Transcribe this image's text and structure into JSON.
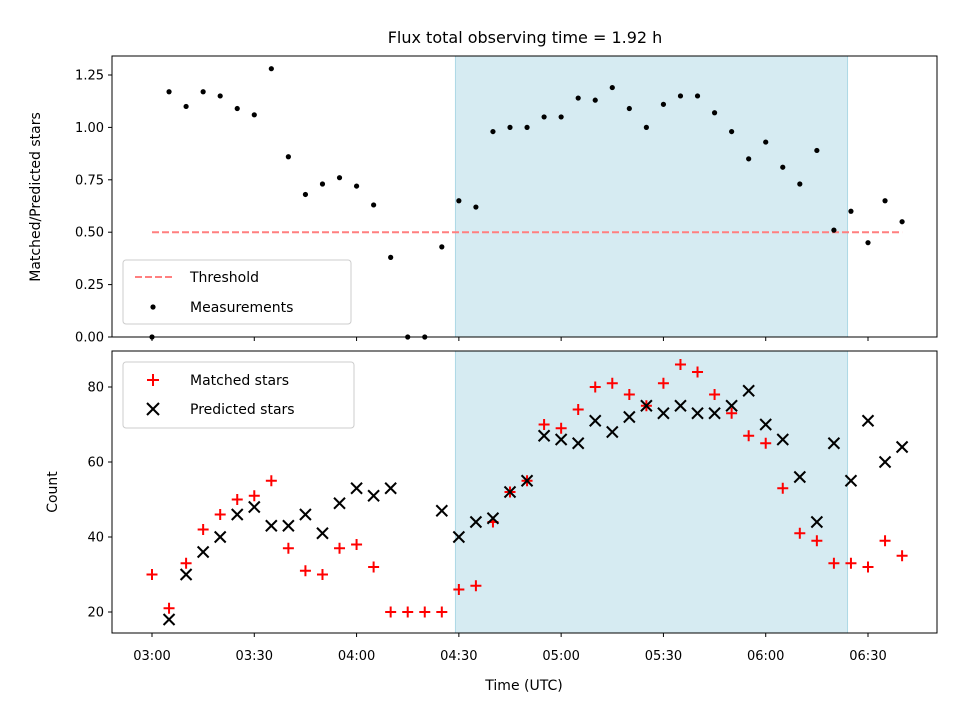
{
  "chart_data": [
    {
      "type": "scatter",
      "title": "Flux total observing time = 1.92 h",
      "xlabel": "",
      "ylabel": "Matched/Predicted stars",
      "ylim": [
        0,
        1.35
      ],
      "yticks": [
        "0.00",
        "0.25",
        "0.50",
        "0.75",
        "1.00",
        "1.25"
      ],
      "shaded_region": {
        "x_start": "04:29",
        "x_end": "06:24",
        "color": "#add8e6"
      },
      "threshold": {
        "name": "Threshold",
        "value": 0.5,
        "x_start": "03:00",
        "x_end": "06:40",
        "color": "#ff7f7f"
      },
      "legend": {
        "position": "lower-left",
        "entries": [
          "Threshold",
          "Measurements"
        ]
      },
      "series": [
        {
          "name": "Measurements",
          "color": "#000000",
          "x": [
            "03:00",
            "03:05",
            "03:10",
            "03:15",
            "03:20",
            "03:25",
            "03:30",
            "03:35",
            "03:40",
            "03:45",
            "03:50",
            "03:55",
            "04:00",
            "04:05",
            "04:10",
            "04:15",
            "04:20",
            "04:25",
            "04:30",
            "04:35",
            "04:40",
            "04:45",
            "04:50",
            "04:55",
            "05:00",
            "05:05",
            "05:10",
            "05:15",
            "05:20",
            "05:25",
            "05:30",
            "05:35",
            "05:40",
            "05:45",
            "05:50",
            "05:55",
            "06:00",
            "06:05",
            "06:10",
            "06:15",
            "06:20",
            "06:25",
            "06:30",
            "06:35",
            "06:40"
          ],
          "values": [
            0.0,
            1.17,
            1.1,
            1.17,
            1.15,
            1.09,
            1.06,
            1.28,
            0.86,
            0.68,
            0.73,
            0.76,
            0.72,
            0.63,
            0.38,
            0.0,
            0.0,
            0.43,
            0.65,
            0.62,
            0.98,
            1.0,
            1.0,
            1.05,
            1.05,
            1.14,
            1.13,
            1.19,
            1.09,
            1.0,
            1.11,
            1.15,
            1.15,
            1.07,
            0.98,
            0.85,
            0.93,
            0.81,
            0.73,
            0.89,
            0.51,
            0.6,
            0.45,
            0.65,
            0.55
          ]
        }
      ]
    },
    {
      "type": "scatter",
      "title": "",
      "xlabel": "Time (UTC)",
      "ylabel": "Count",
      "ylim": [
        15,
        90
      ],
      "yticks": [
        "20",
        "40",
        "60",
        "80"
      ],
      "xticks": [
        "03:00",
        "03:30",
        "04:00",
        "04:30",
        "05:00",
        "05:30",
        "06:00",
        "06:30"
      ],
      "shaded_region": {
        "x_start": "04:29",
        "x_end": "06:24",
        "color": "#add8e6"
      },
      "legend": {
        "position": "upper-left",
        "entries": [
          "Matched stars",
          "Predicted stars"
        ]
      },
      "series": [
        {
          "name": "Matched stars",
          "marker": "plus",
          "color": "#ff0000",
          "x": [
            "03:00",
            "03:05",
            "03:10",
            "03:15",
            "03:20",
            "03:25",
            "03:30",
            "03:35",
            "03:40",
            "03:45",
            "03:50",
            "03:55",
            "04:00",
            "04:05",
            "04:10",
            "04:15",
            "04:20",
            "04:25",
            "04:30",
            "04:35",
            "04:40",
            "04:45",
            "04:50",
            "04:55",
            "05:00",
            "05:05",
            "05:10",
            "05:15",
            "05:20",
            "05:25",
            "05:30",
            "05:35",
            "05:40",
            "05:45",
            "05:50",
            "05:55",
            "06:00",
            "06:05",
            "06:10",
            "06:15",
            "06:20",
            "06:25",
            "06:30",
            "06:35",
            "06:40"
          ],
          "values": [
            30,
            21,
            33,
            42,
            46,
            50,
            51,
            55,
            37,
            31,
            30,
            37,
            38,
            32,
            20,
            20,
            20,
            20,
            26,
            27,
            44,
            52,
            55,
            70,
            69,
            74,
            80,
            81,
            78,
            75,
            81,
            86,
            84,
            78,
            73,
            67,
            65,
            53,
            41,
            39,
            33,
            33,
            32,
            39,
            35
          ]
        },
        {
          "name": "Predicted stars",
          "marker": "x",
          "color": "#000000",
          "x": [
            "03:05",
            "03:10",
            "03:15",
            "03:20",
            "03:25",
            "03:30",
            "03:35",
            "03:40",
            "03:45",
            "03:50",
            "03:55",
            "04:00",
            "04:05",
            "04:10",
            "04:25",
            "04:30",
            "04:35",
            "04:40",
            "04:45",
            "04:50",
            "04:55",
            "05:00",
            "05:05",
            "05:10",
            "05:15",
            "05:20",
            "05:25",
            "05:30",
            "05:35",
            "05:40",
            "05:45",
            "05:50",
            "05:55",
            "06:00",
            "06:05",
            "06:10",
            "06:15",
            "06:20",
            "06:25",
            "06:30",
            "06:35",
            "06:40"
          ],
          "values": [
            18,
            30,
            36,
            40,
            46,
            48,
            43,
            43,
            46,
            41,
            49,
            53,
            51,
            53,
            47,
            40,
            44,
            45,
            52,
            55,
            67,
            66,
            65,
            71,
            68,
            72,
            75,
            73,
            75,
            73,
            73,
            75,
            79,
            70,
            66,
            56,
            44,
            65,
            55,
            71,
            60,
            64
          ]
        }
      ]
    }
  ]
}
